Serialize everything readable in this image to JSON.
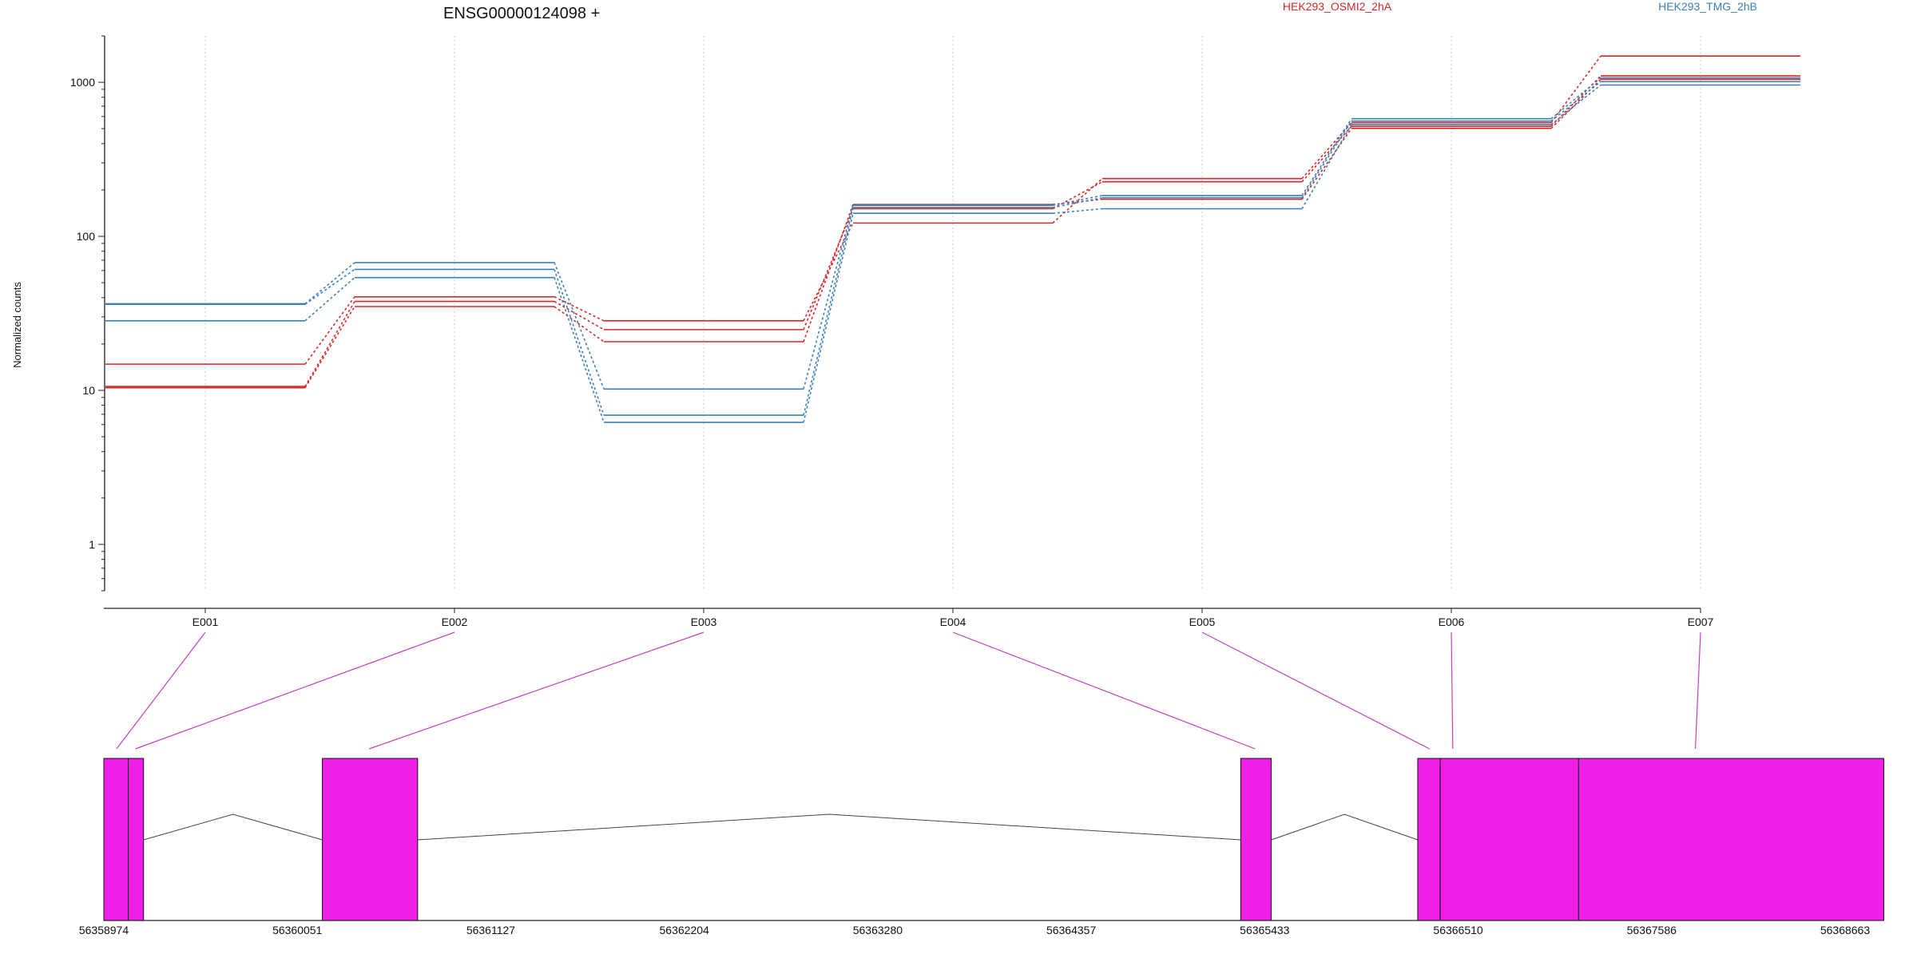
{
  "chart_data": {
    "type": "line",
    "title": "ENSG00000124098 +",
    "ylabel": "Normalized counts",
    "xlabel": "",
    "y_scale": "log",
    "ylim": [
      0.5,
      2000
    ],
    "y_ticks": [
      1,
      10,
      100,
      1000
    ],
    "y_tick_labels": [
      "1",
      "10",
      "100",
      "1000"
    ],
    "categories": [
      "E001",
      "E002",
      "E003",
      "E004",
      "E005",
      "E006",
      "E007"
    ],
    "grid": "vertical dotted at exon positions",
    "legend": [
      {
        "label": "HEK293_OSMI2_2hA",
        "color": "#d62728"
      },
      {
        "label": "HEK293_TMG_2hB",
        "color": "#3a7fb8"
      }
    ],
    "series": [
      {
        "group": "HEK293_OSMI2_2hA",
        "color": "#d62728",
        "values": [
          14.8,
          40.5,
          28.3,
          122,
          237,
          547,
          1480
        ]
      },
      {
        "group": "HEK293_OSMI2_2hA",
        "color": "#d62728",
        "values": [
          10.6,
          37.8,
          24.8,
          151,
          226,
          518,
          1100
        ]
      },
      {
        "group": "HEK293_OSMI2_2hA",
        "color": "#d62728",
        "values": [
          10.4,
          35.0,
          20.7,
          161,
          174,
          502,
          1045
        ]
      },
      {
        "group": "HEK293_TMG_2hB",
        "color": "#3a7fb8",
        "values": [
          36.5,
          67.5,
          10.2,
          159,
          184,
          580,
          1068
        ]
      },
      {
        "group": "HEK293_TMG_2hB",
        "color": "#3a7fb8",
        "values": [
          36.2,
          61.0,
          6.9,
          154,
          178,
          560,
          1010
        ]
      },
      {
        "group": "HEK293_TMG_2hB",
        "color": "#3a7fb8",
        "values": [
          28.3,
          54.0,
          6.2,
          141,
          151,
          532,
          960
        ]
      }
    ],
    "gene_model": {
      "coordinate_ticks": [
        "56358974",
        "56360051",
        "56361127",
        "56362204",
        "56363280",
        "56364357",
        "56365433",
        "56366510",
        "56367586",
        "56368663"
      ],
      "range": [
        56358974,
        56368663
      ],
      "exon_fill": "#f01fe8",
      "exon_blocks": [
        [
          56358974,
          56359110
        ],
        [
          56359110,
          56359195
        ],
        [
          56360190,
          56360720
        ],
        [
          56365300,
          56365470
        ],
        [
          56366285,
          56366410
        ],
        [
          56366410,
          56367180
        ],
        [
          56367180,
          56368878
        ]
      ],
      "connector_color": "#c040c0",
      "exon_connectors": [
        {
          "label": "E001",
          "target": 56359045
        },
        {
          "label": "E002",
          "target": 56359150
        },
        {
          "label": "E003",
          "target": 56360450
        },
        {
          "label": "E004",
          "target": 56365380
        },
        {
          "label": "E005",
          "target": 56366350
        },
        {
          "label": "E006",
          "target": 56366480
        },
        {
          "label": "E007",
          "target": 56367830
        }
      ],
      "introns": [
        [
          56359195,
          56360190
        ],
        [
          56360720,
          56365300
        ],
        [
          56365470,
          56366285
        ]
      ]
    }
  }
}
